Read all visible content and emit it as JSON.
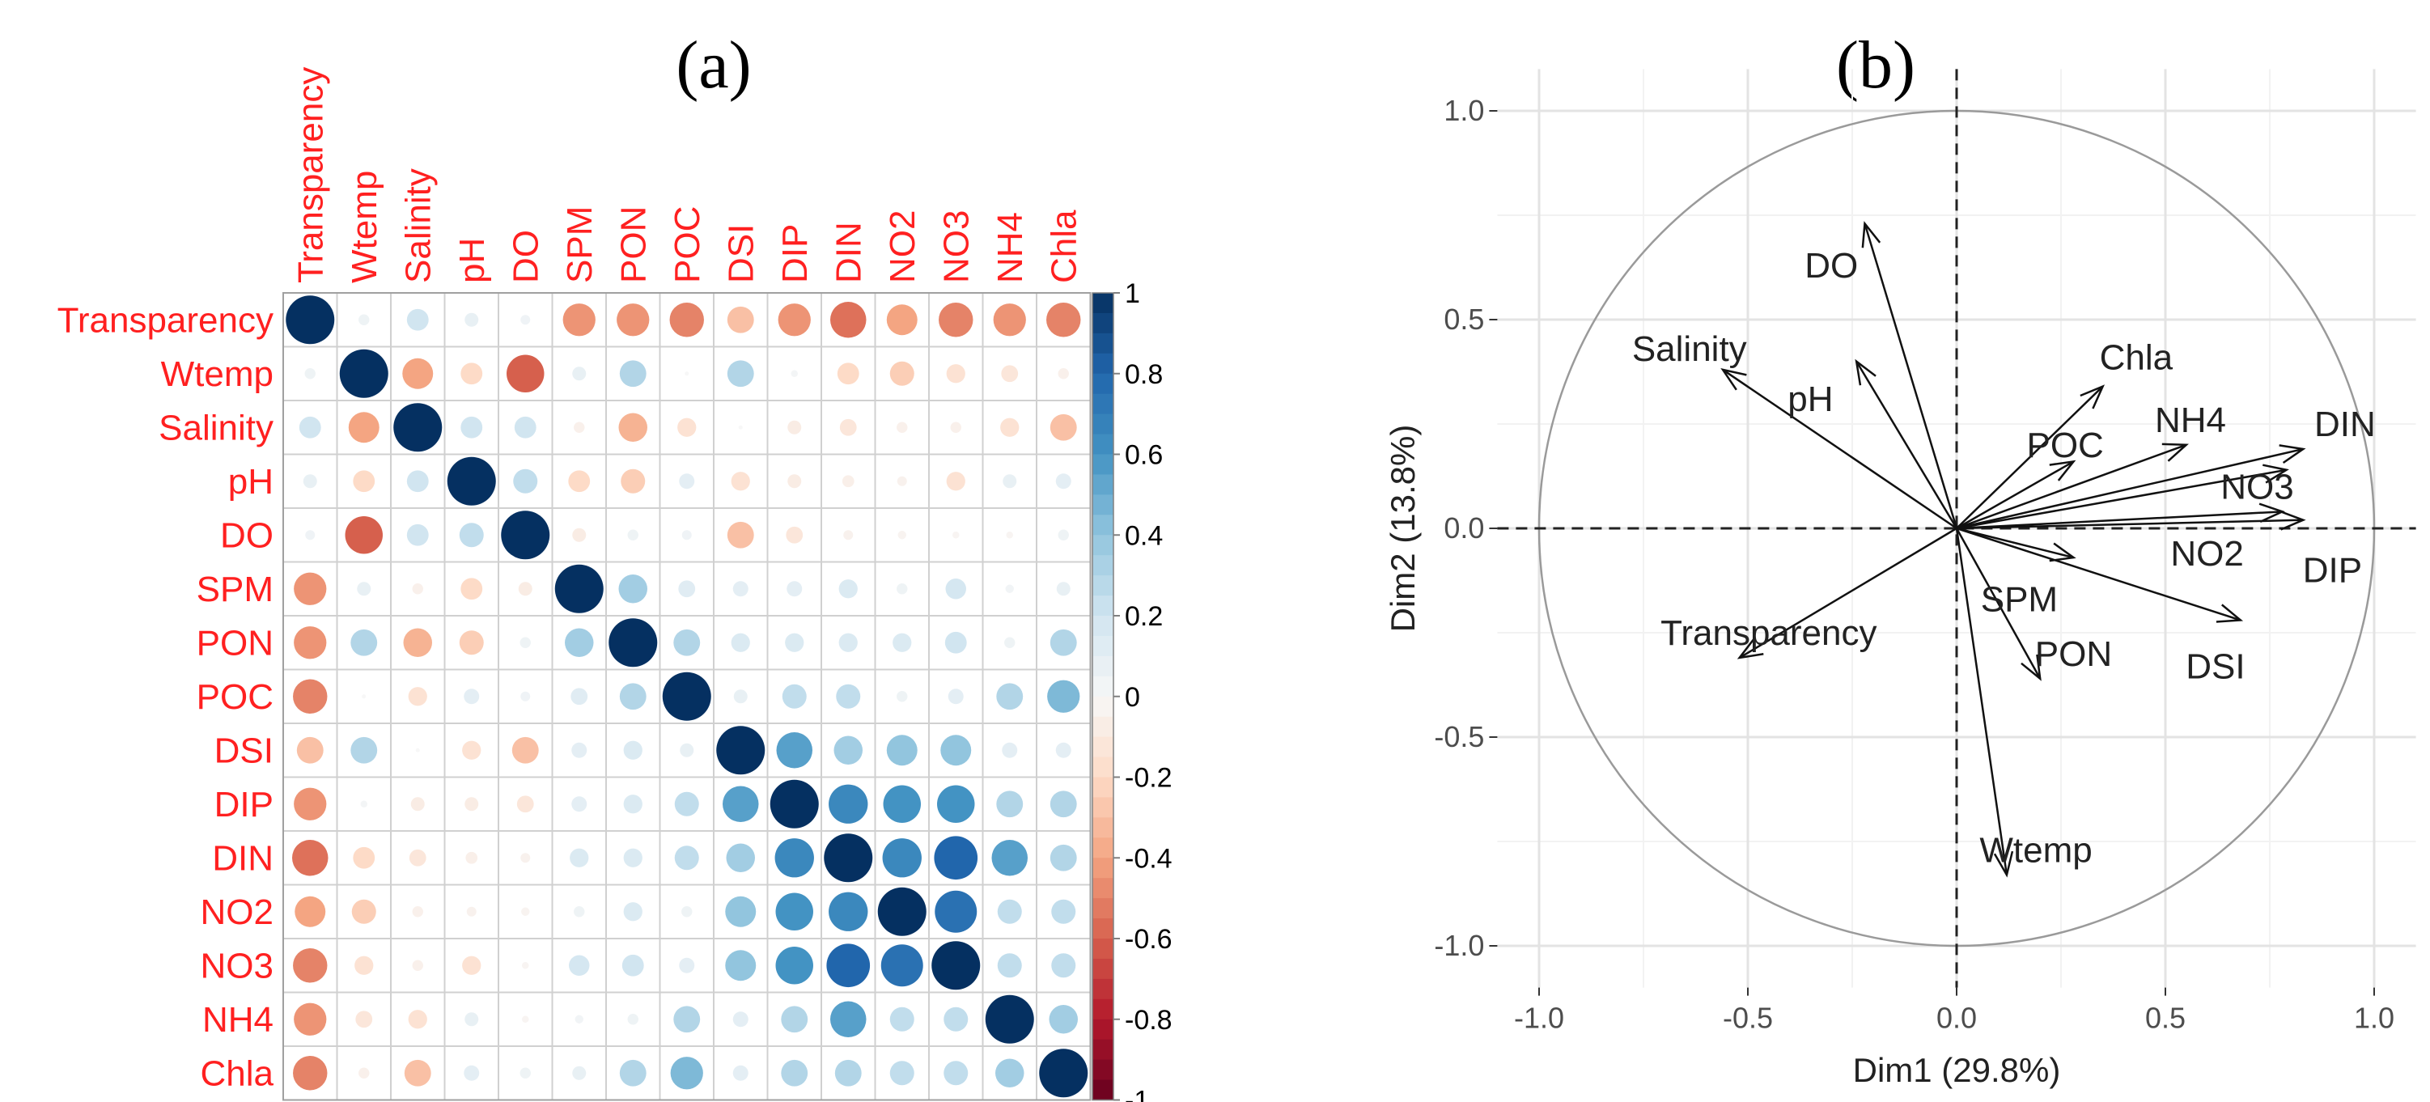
{
  "colors": {
    "label_red": "#ff2020",
    "grid": "#c8c8c8",
    "cell_border": "#d0d0d0",
    "axis_text": "#4d4d4d",
    "scale_neg": [
      "#67001f",
      "#b2182b",
      "#d6604d",
      "#f4a582",
      "#fddbc7",
      "#f7f7f7"
    ],
    "scale_pos": [
      "#f7f7f7",
      "#d1e5f0",
      "#92c5de",
      "#4393c3",
      "#2166ac",
      "#053061"
    ]
  },
  "chart_data": [
    {
      "type": "heatmap",
      "panel_label": "(a)",
      "variables": [
        "Transparency",
        "Wtemp",
        "Salinity",
        "pH",
        "DO",
        "SPM",
        "PON",
        "POC",
        "DSI",
        "DIP",
        "DIN",
        "NO2",
        "NO3",
        "NH4",
        "Chla"
      ],
      "matrix": [
        [
          1,
          0.05,
          0.2,
          0.08,
          0.04,
          -0.45,
          -0.45,
          -0.5,
          -0.3,
          -0.45,
          -0.55,
          -0.4,
          -0.5,
          -0.45,
          -0.5
        ],
        [
          0.05,
          1,
          -0.4,
          -0.2,
          -0.6,
          0.08,
          0.3,
          0,
          0.3,
          0.02,
          -0.2,
          -0.25,
          -0.15,
          -0.12,
          -0.05
        ],
        [
          0.2,
          -0.4,
          1,
          0.2,
          0.2,
          -0.05,
          -0.35,
          -0.15,
          0,
          -0.08,
          -0.12,
          -0.05,
          -0.05,
          -0.15,
          -0.3
        ],
        [
          0.08,
          -0.2,
          0.2,
          1,
          0.25,
          -0.2,
          -0.25,
          0.1,
          -0.15,
          -0.08,
          -0.06,
          -0.04,
          -0.15,
          0.08,
          0.1
        ],
        [
          0.04,
          -0.6,
          0.2,
          0.25,
          1,
          -0.08,
          0.05,
          0.04,
          -0.3,
          -0.12,
          -0.04,
          -0.03,
          -0.02,
          -0.02,
          0.05
        ],
        [
          -0.45,
          0.08,
          -0.05,
          -0.2,
          -0.08,
          1,
          0.35,
          0.12,
          0.1,
          0.1,
          0.15,
          0.05,
          0.18,
          0.03,
          0.08
        ],
        [
          -0.45,
          0.3,
          -0.35,
          -0.25,
          0.05,
          0.35,
          1,
          0.3,
          0.15,
          0.15,
          0.15,
          0.15,
          0.2,
          0.05,
          0.3
        ],
        [
          -0.5,
          0,
          -0.15,
          0.1,
          0.04,
          0.12,
          0.3,
          1,
          0.08,
          0.25,
          0.25,
          0.05,
          0.1,
          0.3,
          0.45
        ],
        [
          -0.3,
          0.3,
          0,
          -0.15,
          -0.3,
          0.1,
          0.15,
          0.08,
          1,
          0.55,
          0.35,
          0.4,
          0.4,
          0.1,
          0.1
        ],
        [
          -0.45,
          0.02,
          -0.08,
          -0.08,
          -0.12,
          0.1,
          0.15,
          0.25,
          0.55,
          1,
          0.65,
          0.6,
          0.6,
          0.3,
          0.3
        ],
        [
          -0.55,
          -0.2,
          -0.12,
          -0.06,
          -0.04,
          0.15,
          0.15,
          0.25,
          0.35,
          0.65,
          1,
          0.65,
          0.8,
          0.55,
          0.3
        ],
        [
          -0.4,
          -0.25,
          -0.05,
          -0.04,
          -0.03,
          0.05,
          0.15,
          0.05,
          0.4,
          0.6,
          0.65,
          1,
          0.75,
          0.25,
          0.25
        ],
        [
          -0.5,
          -0.15,
          -0.05,
          -0.15,
          -0.02,
          0.18,
          0.2,
          0.1,
          0.4,
          0.6,
          0.8,
          0.75,
          1,
          0.25,
          0.25
        ],
        [
          -0.45,
          -0.12,
          -0.15,
          0.08,
          -0.02,
          0.03,
          0.05,
          0.3,
          0.1,
          0.3,
          0.55,
          0.25,
          0.25,
          1,
          0.35
        ],
        [
          -0.5,
          -0.05,
          -0.3,
          0.1,
          0.05,
          0.08,
          0.3,
          0.45,
          0.1,
          0.3,
          0.3,
          0.25,
          0.25,
          0.35,
          1
        ]
      ],
      "colorbar": {
        "range": [
          -1,
          1
        ],
        "ticks": [
          "1",
          "0.8",
          "0.6",
          "0.4",
          "0.2",
          "0",
          "-0.2",
          "-0.4",
          "-0.6",
          "-0.8",
          "-1"
        ]
      }
    },
    {
      "type": "scatter",
      "subtype": "pca-variable-arrows",
      "panel_label": "(b)",
      "xlabel": "Dim1 (29.8%)",
      "ylabel": "Dim2 (13.8%)",
      "xlim": [
        -1.1,
        1.1
      ],
      "ylim": [
        -1.1,
        1.1
      ],
      "xticks": [
        "-1.0",
        "-0.5",
        "0.0",
        "0.5",
        "1.0"
      ],
      "yticks": [
        "1.0",
        "0.5",
        "0.0",
        "-0.5",
        "-1.0"
      ],
      "grid": true,
      "unit_circle": true,
      "arrows": [
        {
          "name": "DO",
          "x": -0.22,
          "y": 0.73
        },
        {
          "name": "Salinity",
          "x": -0.56,
          "y": 0.38
        },
        {
          "name": "pH",
          "x": -0.24,
          "y": 0.4
        },
        {
          "name": "Chla",
          "x": 0.35,
          "y": 0.34
        },
        {
          "name": "POC",
          "x": 0.28,
          "y": 0.16
        },
        {
          "name": "NH4",
          "x": 0.55,
          "y": 0.2
        },
        {
          "name": "DIN",
          "x": 0.83,
          "y": 0.19
        },
        {
          "name": "NO3",
          "x": 0.79,
          "y": 0.14
        },
        {
          "name": "NO2",
          "x": 0.78,
          "y": 0.04
        },
        {
          "name": "DIP",
          "x": 0.83,
          "y": 0.02
        },
        {
          "name": "DSI",
          "x": 0.68,
          "y": -0.22
        },
        {
          "name": "SPM",
          "x": 0.28,
          "y": -0.07
        },
        {
          "name": "PON",
          "x": 0.2,
          "y": -0.36
        },
        {
          "name": "Transparency",
          "x": -0.52,
          "y": -0.31
        },
        {
          "name": "Wtemp",
          "x": 0.12,
          "y": -0.83
        }
      ],
      "arrow_labels": [
        {
          "name": "DO",
          "text": "DO",
          "x": -0.3,
          "y": 0.63
        },
        {
          "name": "Salinity",
          "text": "Salinity",
          "x": -0.64,
          "y": 0.43
        },
        {
          "name": "pH",
          "text": "pH",
          "x": -0.35,
          "y": 0.31
        },
        {
          "name": "Chla",
          "text": "Chla",
          "x": 0.43,
          "y": 0.41
        },
        {
          "name": "POC",
          "text": "POC",
          "x": 0.26,
          "y": 0.2
        },
        {
          "name": "NH4",
          "text": "NH4",
          "x": 0.56,
          "y": 0.26
        },
        {
          "name": "DIN",
          "text": "DIN",
          "x": 0.93,
          "y": 0.25
        },
        {
          "name": "NO3",
          "text": "NO3",
          "x": 0.72,
          "y": 0.1
        },
        {
          "name": "NO2",
          "text": "NO2",
          "x": 0.6,
          "y": -0.06
        },
        {
          "name": "DIP",
          "text": "DIP",
          "x": 0.9,
          "y": -0.1
        },
        {
          "name": "DSI",
          "text": "DSI",
          "x": 0.62,
          "y": -0.33
        },
        {
          "name": "SPM",
          "text": "SPM",
          "x": 0.15,
          "y": -0.17
        },
        {
          "name": "PON",
          "text": "PON",
          "x": 0.28,
          "y": -0.3
        },
        {
          "name": "Transparency",
          "text": "Transparency",
          "x": -0.45,
          "y": -0.25
        },
        {
          "name": "Wtemp",
          "text": "Wtemp",
          "x": 0.19,
          "y": -0.77
        }
      ]
    }
  ]
}
